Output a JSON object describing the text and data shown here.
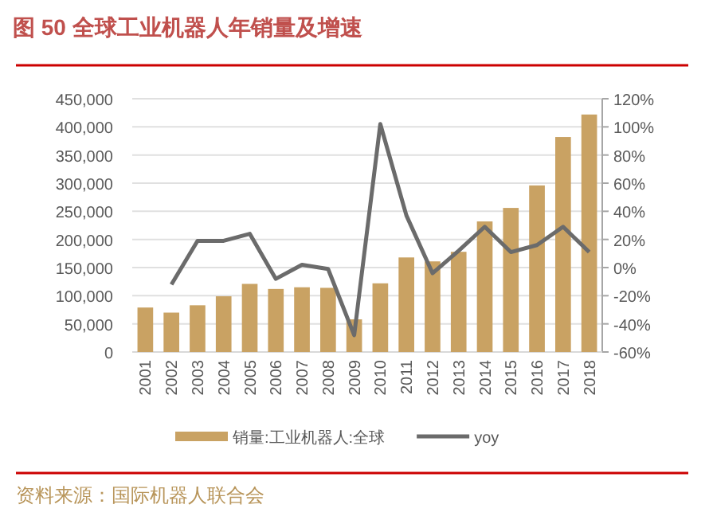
{
  "chart_data": {
    "type": "bar",
    "title": "图 50    全球工业机器人年销量及增速",
    "categories": [
      "2001",
      "2002",
      "2003",
      "2004",
      "2005",
      "2006",
      "2007",
      "2008",
      "2009",
      "2010",
      "2011",
      "2012",
      "2013",
      "2014",
      "2015",
      "2016",
      "2017",
      "2018"
    ],
    "series": [
      {
        "name": "销量:工业机器人:全球",
        "color": "#c9a263",
        "values": [
          79000,
          70000,
          83000,
          99000,
          121000,
          112000,
          115000,
          114000,
          58000,
          122000,
          168000,
          161000,
          178000,
          232000,
          256000,
          296000,
          382000,
          422000
        ]
      },
      {
        "name": "yoy",
        "type": "line",
        "axis": "y2",
        "color": "#6b6b6b",
        "values": [
          null,
          -12,
          19,
          19,
          24,
          -8,
          2,
          -1,
          -48,
          102,
          37,
          -4,
          12,
          29,
          11,
          16,
          29,
          11
        ]
      }
    ],
    "ylim": [
      0,
      450000
    ],
    "yticks": [
      0,
      {
        "value": 50000,
        "label": "50,000"
      },
      {
        "value": 100000,
        "label": "100,000"
      },
      {
        "value": 150000,
        "label": "150,000"
      },
      {
        "value": 200000,
        "label": "200,000"
      },
      {
        "value": 250000,
        "label": "250,000"
      },
      {
        "value": 300000,
        "label": "300,000"
      },
      {
        "value": 350000,
        "label": "350,000"
      },
      {
        "value": 400000,
        "label": "400,000"
      },
      {
        "value": 450000,
        "label": "450,000"
      }
    ],
    "y2lim": [
      -60,
      120
    ],
    "y2ticks": [
      {
        "value": -60,
        "label": "-60%"
      },
      {
        "value": -40,
        "label": "-40%"
      },
      {
        "value": -20,
        "label": "-20%"
      },
      {
        "value": 0,
        "label": "0%"
      },
      {
        "value": 20,
        "label": "20%"
      },
      {
        "value": 40,
        "label": "40%"
      },
      {
        "value": 60,
        "label": "60%"
      },
      {
        "value": 80,
        "label": "80%"
      },
      {
        "value": 100,
        "label": "100%"
      },
      {
        "value": 120,
        "label": "120%"
      }
    ],
    "grid": "y",
    "legend": "bottom",
    "annotations": [
      "资料来源：国际机器人联合会"
    ]
  }
}
